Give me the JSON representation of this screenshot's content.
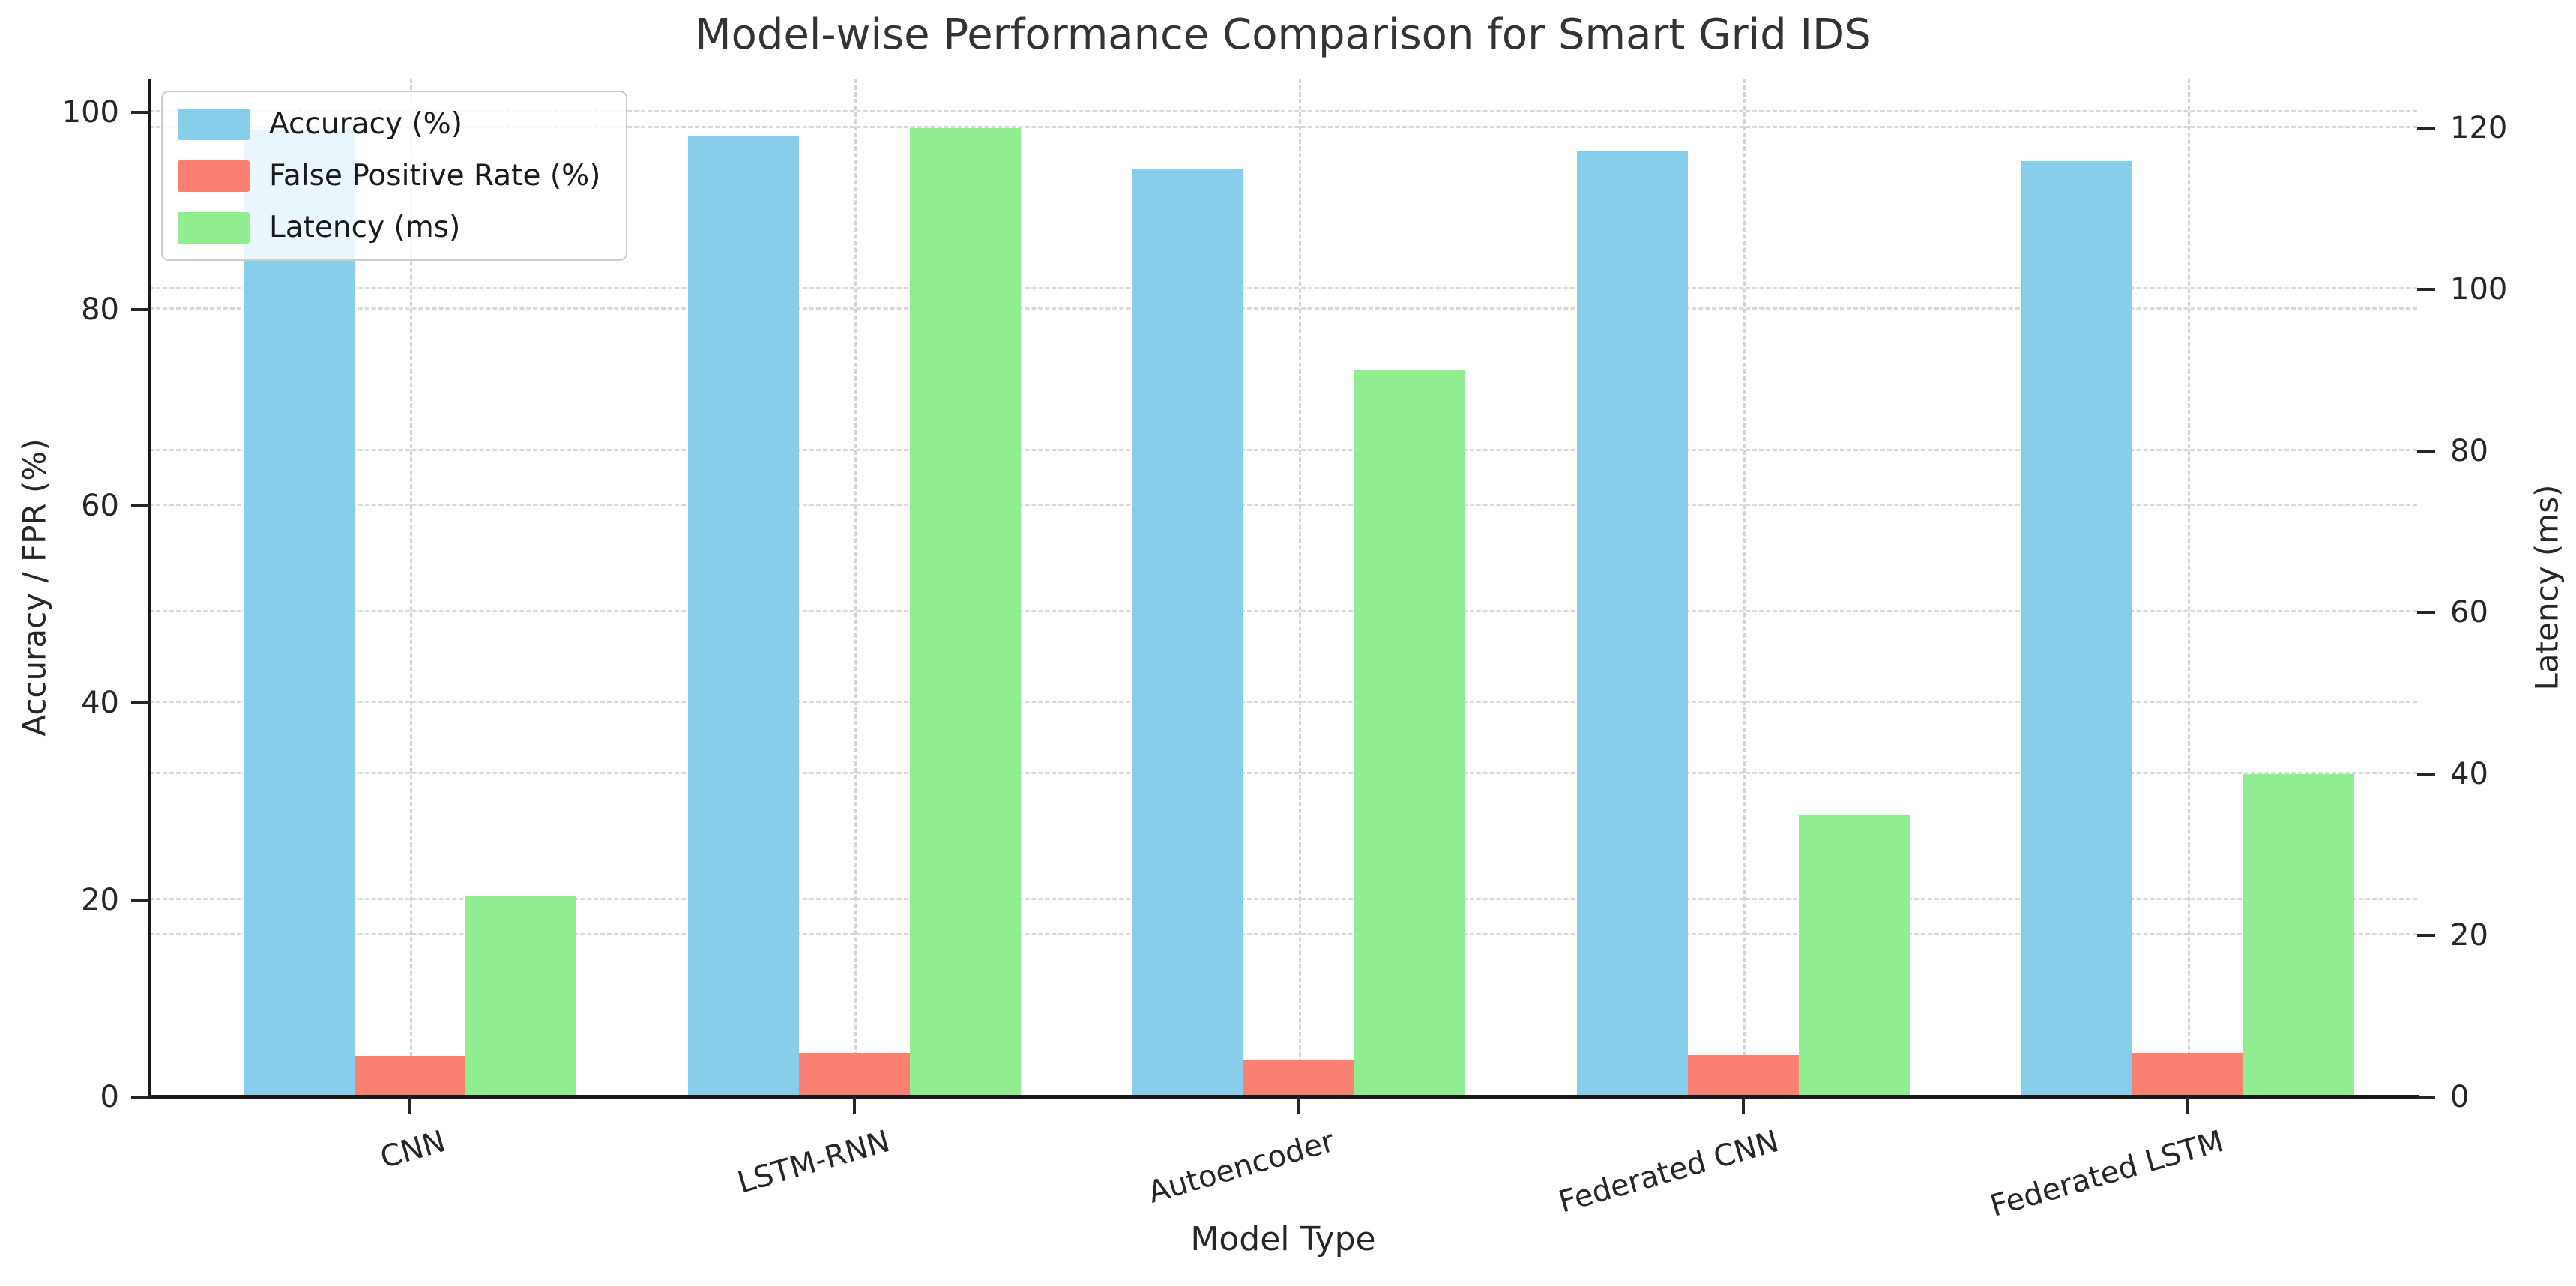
{
  "chart_data": {
    "type": "bar",
    "title": "Model-wise Performance Comparison for Smart Grid IDS",
    "xlabel": "Model Type",
    "ylabel_left": "Accuracy / FPR (%)",
    "ylabel_right": "Latency (ms)",
    "categories": [
      "CNN",
      "LSTM-RNN",
      "Autoencoder",
      "Federated CNN",
      "Federated LSTM"
    ],
    "series": [
      {
        "name": "Accuracy (%)",
        "axis": "left",
        "color": "#87CEEB",
        "values": [
          98.2,
          97.6,
          94.3,
          96.0,
          95.0
        ]
      },
      {
        "name": "False Positive Rate (%)",
        "axis": "left",
        "color": "#FA8072",
        "values": [
          4.2,
          4.5,
          3.8,
          4.3,
          4.5
        ]
      },
      {
        "name": "Latency (ms)",
        "axis": "right",
        "color": "#90EE90",
        "values": [
          25,
          120,
          90,
          35,
          40
        ]
      }
    ],
    "left_ticks": [
      0,
      20,
      40,
      60,
      80,
      100
    ],
    "right_ticks": [
      0,
      20,
      40,
      60,
      80,
      100,
      120
    ],
    "ylim_left": [
      0,
      103.4
    ],
    "ylim_right": [
      0,
      126.1
    ],
    "grid": "dashed, both y-axes plus vertical at categories",
    "legend_position": "upper left",
    "colors": {
      "accuracy": "#87CEEB",
      "fpr": "#FA8072",
      "latency": "#90EE90",
      "grid": "#d9d9d9",
      "spine": "#1a1a1a",
      "text": "#262626",
      "title": "#333333"
    }
  }
}
